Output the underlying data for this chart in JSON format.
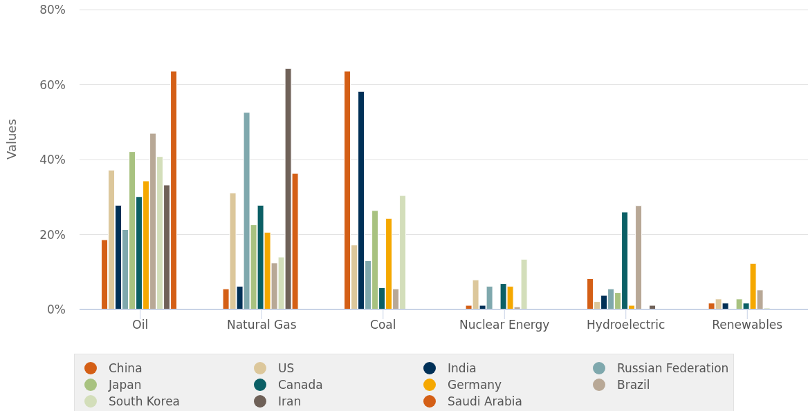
{
  "chart_data": {
    "type": "bar",
    "ylabel": "Values",
    "categories": [
      "Oil",
      "Natural Gas",
      "Coal",
      "Nuclear Energy",
      "Hydroelectric",
      "Renewables"
    ],
    "series": [
      {
        "name": "China",
        "color": "#d45f16",
        "values": [
          18.6,
          5.5,
          63.6,
          1.1,
          8.2,
          1.7
        ]
      },
      {
        "name": "US",
        "color": "#dcc79b",
        "values": [
          37.2,
          31.1,
          17.2,
          7.9,
          2.1,
          2.8
        ]
      },
      {
        "name": "India",
        "color": "#003057",
        "values": [
          27.8,
          6.2,
          58.2,
          1.1,
          3.8,
          1.7
        ]
      },
      {
        "name": "Russian Federation",
        "color": "#7fa8ad",
        "values": [
          21.3,
          52.6,
          13.0,
          6.2,
          5.5,
          0
        ]
      },
      {
        "name": "Japan",
        "color": "#a8c280",
        "values": [
          42.1,
          22.6,
          26.4,
          0,
          4.5,
          2.8
        ]
      },
      {
        "name": "Canada",
        "color": "#0b5f65",
        "values": [
          30.1,
          27.8,
          5.8,
          6.9,
          26.0,
          1.7
        ]
      },
      {
        "name": "Germany",
        "color": "#f5a800",
        "values": [
          34.3,
          20.6,
          24.3,
          6.2,
          1.1,
          12.3
        ]
      },
      {
        "name": "Brazil",
        "color": "#b8a896",
        "values": [
          47.0,
          12.4,
          5.5,
          0.7,
          27.7,
          5.2
        ]
      },
      {
        "name": "South Korea",
        "color": "#d3deba",
        "values": [
          40.8,
          14.0,
          30.4,
          13.4,
          0,
          0.4
        ]
      },
      {
        "name": "Iran",
        "color": "#6f6158",
        "values": [
          33.2,
          64.3,
          0,
          0,
          1.1,
          0
        ]
      },
      {
        "name": "Saudi Arabia",
        "color": "#d45f16",
        "values": [
          63.6,
          36.3,
          0,
          0,
          0,
          0
        ]
      }
    ],
    "ylim": [
      0,
      80
    ],
    "yticks": [
      {
        "value": 0,
        "label": "0%"
      },
      {
        "value": 20,
        "label": "20%"
      },
      {
        "value": 40,
        "label": "40%"
      },
      {
        "value": 60,
        "label": "60%"
      },
      {
        "value": 80,
        "label": "80%"
      }
    ],
    "grid": "y",
    "legend": "bottom"
  }
}
